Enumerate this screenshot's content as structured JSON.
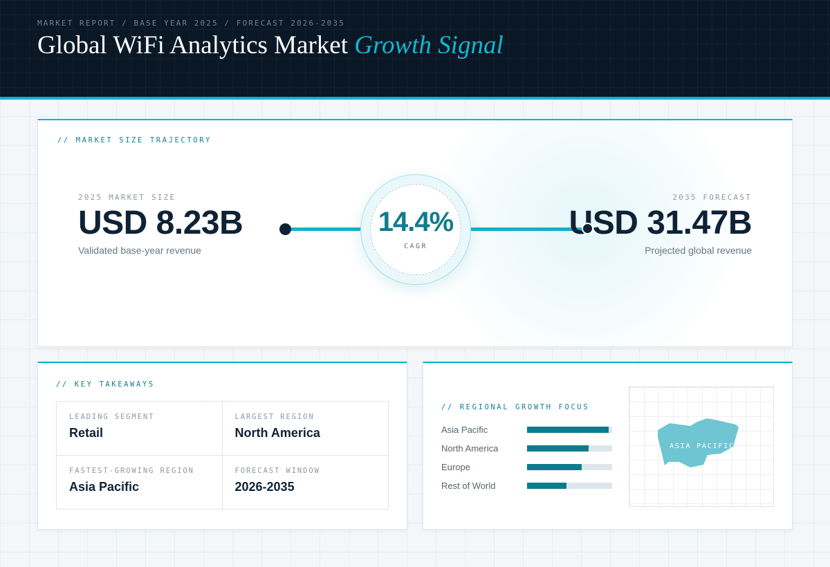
{
  "header": {
    "breadcrumb": "MARKET REPORT / BASE YEAR 2025 / FORECAST 2026-2035",
    "title_main": "Global WiFi Analytics Market",
    "title_accent": "Growth Signal"
  },
  "trajectory": {
    "label": "// MARKET SIZE TRAJECTORY",
    "start": {
      "label": "2025 MARKET SIZE",
      "value": "USD 8.23B",
      "caption": "Validated base-year revenue"
    },
    "cagr": {
      "value": "14.4%",
      "label": "CAGR"
    },
    "end": {
      "label": "2035 FORECAST",
      "value": "USD 31.47B",
      "caption": "Projected global revenue"
    }
  },
  "takeaways": {
    "label": "// KEY TAKEAWAYS",
    "items": [
      {
        "label": "LEADING SEGMENT",
        "value": "Retail"
      },
      {
        "label": "LARGEST REGION",
        "value": "North America"
      },
      {
        "label": "FASTEST-GROWING REGION",
        "value": "Asia Pacific"
      },
      {
        "label": "FORECAST WINDOW",
        "value": "2026-2035"
      }
    ]
  },
  "regional": {
    "label": "// REGIONAL GROWTH FOCUS",
    "regions": [
      {
        "name": "Asia Pacific",
        "level": 0.96
      },
      {
        "name": "North America",
        "level": 0.72
      },
      {
        "name": "Europe",
        "level": 0.64
      },
      {
        "name": "Rest of World",
        "level": 0.46
      }
    ],
    "map_tag": "ASIA PACIFIC"
  },
  "colors": {
    "accent": "#12b1c9",
    "accent_dark": "#0e7b8d",
    "navy": "#0f2235",
    "map_fill": "#6fc5d2"
  }
}
